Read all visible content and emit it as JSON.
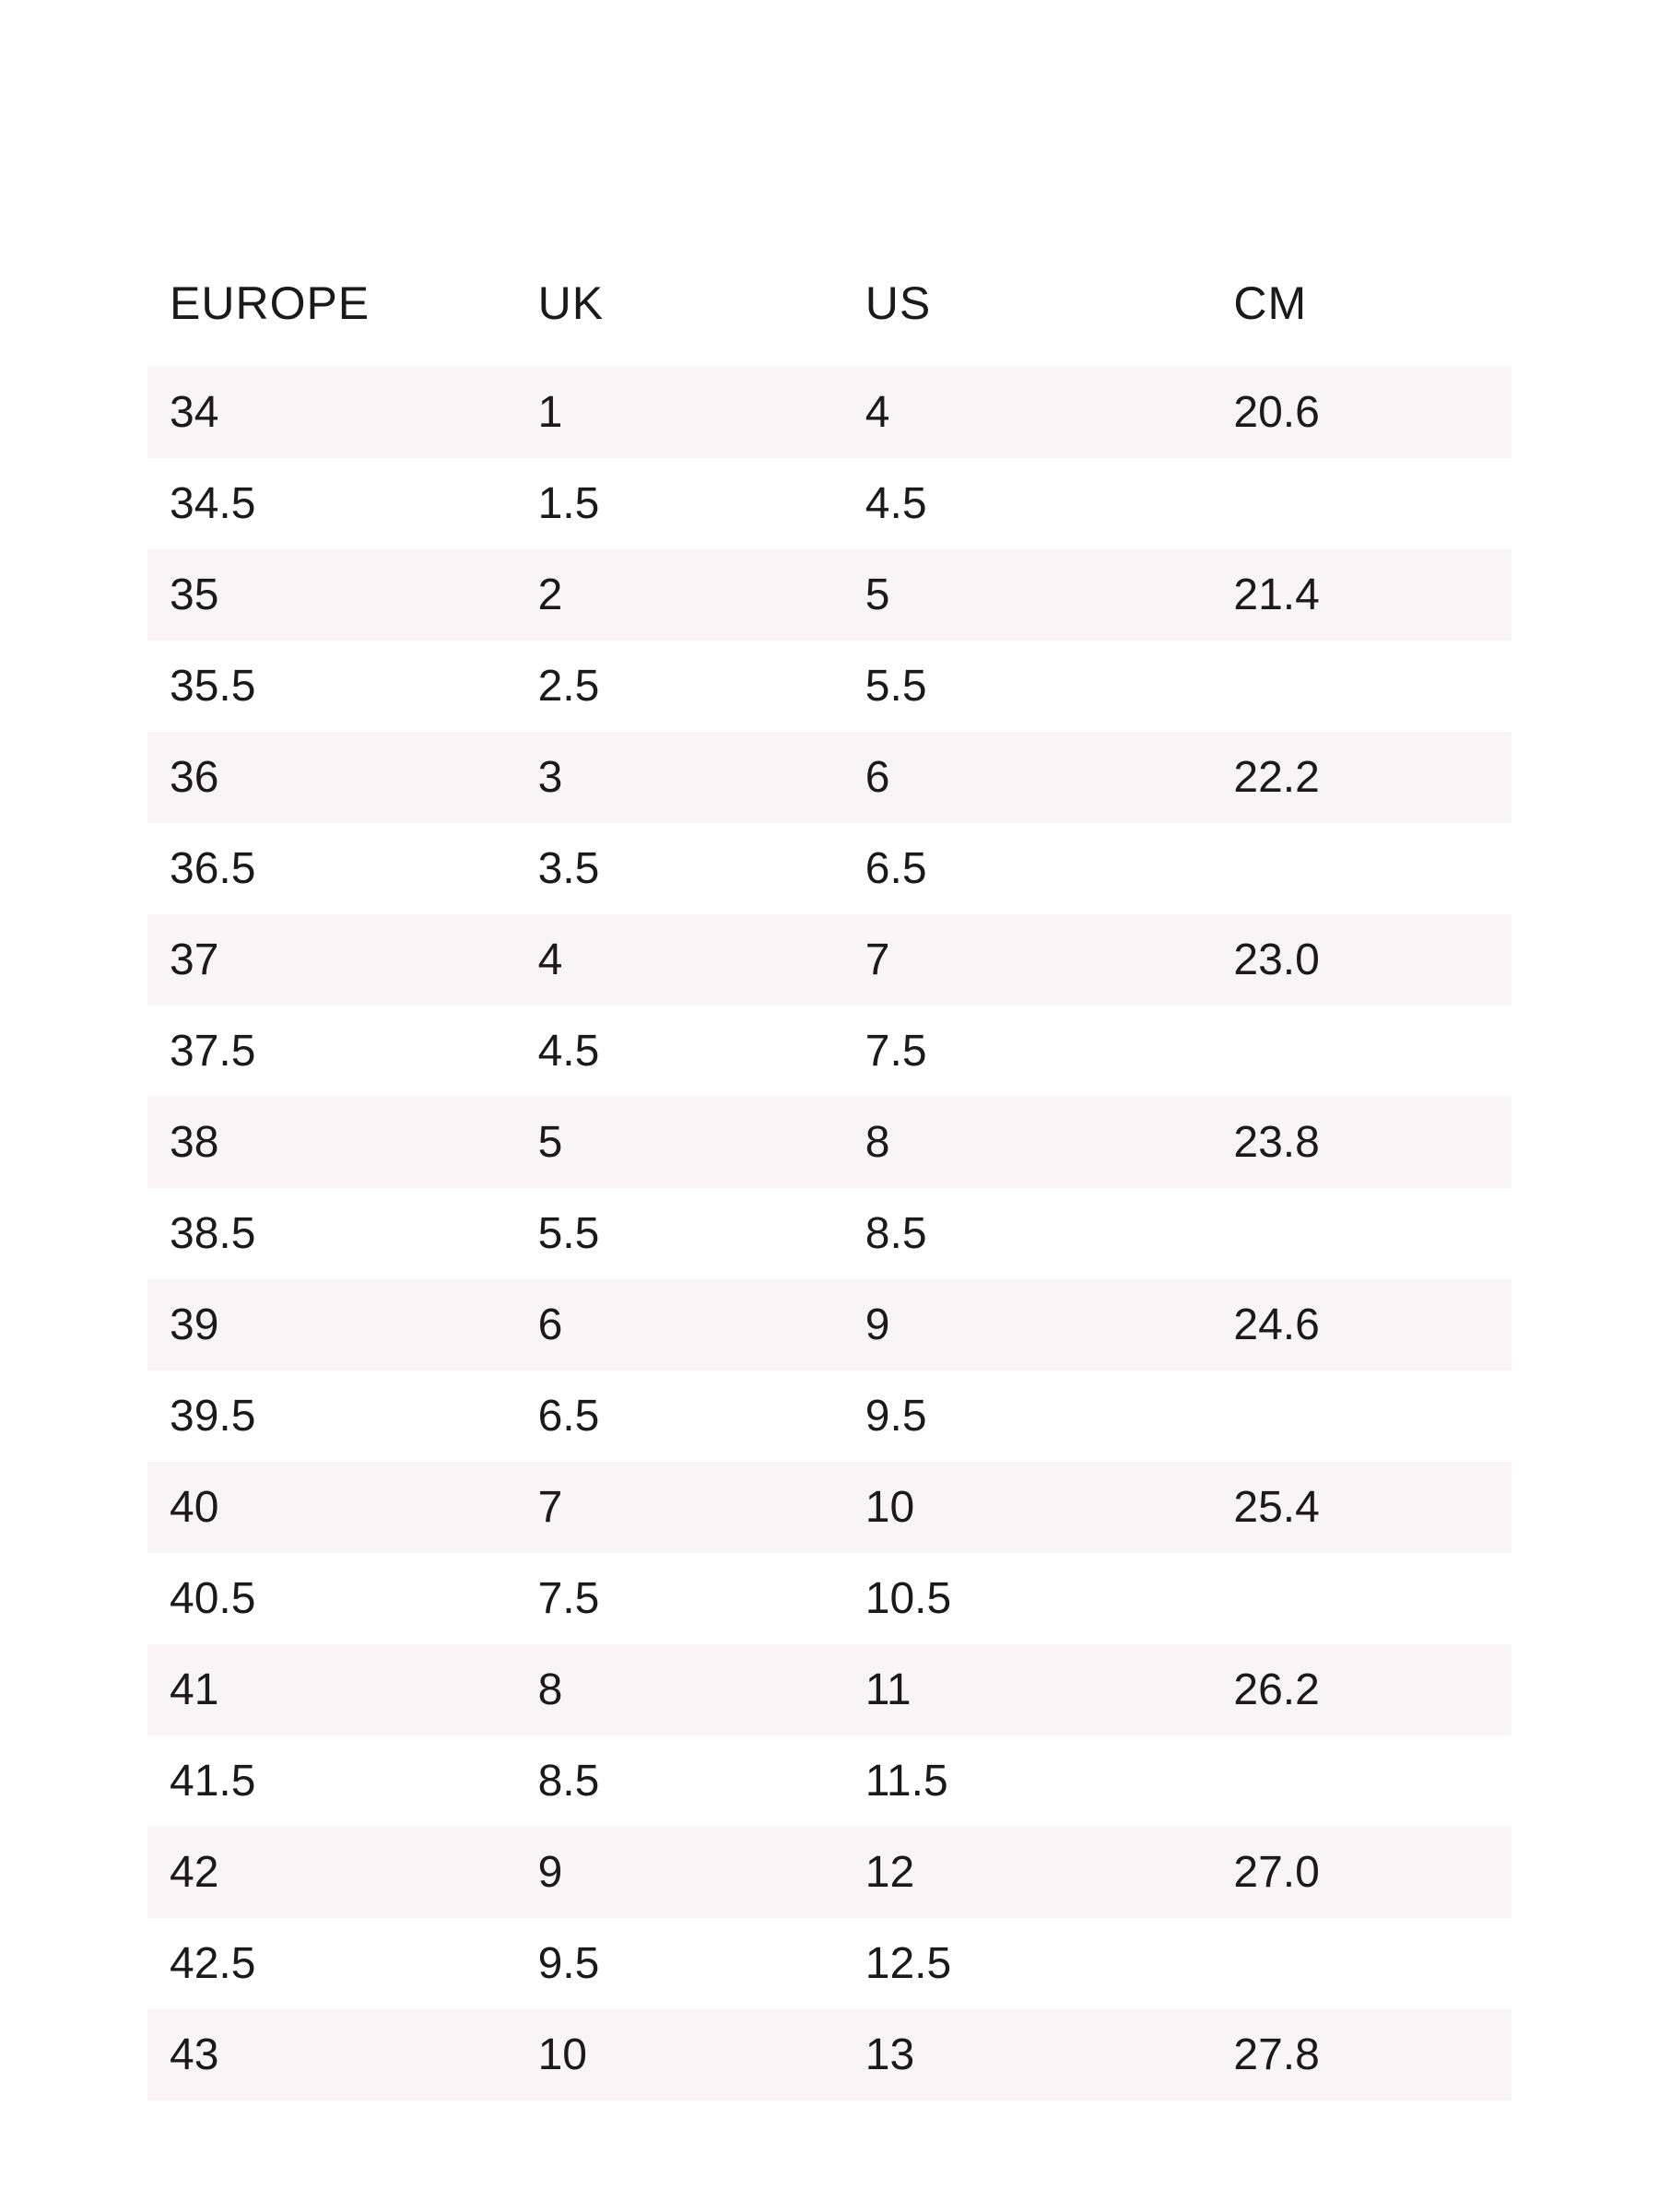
{
  "table": {
    "type": "table",
    "background_color": "#ffffff",
    "stripe_color": "#f9f4f5",
    "text_color": "#1a1a1a",
    "header_fontsize": 50,
    "cell_fontsize": 48,
    "columns": [
      {
        "label": "EUROPE",
        "width_pct": 27,
        "align": "left"
      },
      {
        "label": "UK",
        "width_pct": 24,
        "align": "left"
      },
      {
        "label": "US",
        "width_pct": 27,
        "align": "left"
      },
      {
        "label": "CM",
        "width_pct": 22,
        "align": "left"
      }
    ],
    "rows": [
      [
        "34",
        "1",
        "4",
        "20.6"
      ],
      [
        "34.5",
        "1.5",
        "4.5",
        ""
      ],
      [
        "35",
        "2",
        "5",
        "21.4"
      ],
      [
        "35.5",
        "2.5",
        "5.5",
        ""
      ],
      [
        "36",
        "3",
        "6",
        "22.2"
      ],
      [
        "36.5",
        "3.5",
        "6.5",
        ""
      ],
      [
        "37",
        "4",
        "7",
        "23.0"
      ],
      [
        "37.5",
        "4.5",
        "7.5",
        ""
      ],
      [
        "38",
        "5",
        "8",
        "23.8"
      ],
      [
        "38.5",
        "5.5",
        "8.5",
        ""
      ],
      [
        "39",
        "6",
        "9",
        "24.6"
      ],
      [
        "39.5",
        "6.5",
        "9.5",
        ""
      ],
      [
        "40",
        "7",
        "10",
        "25.4"
      ],
      [
        "40.5",
        "7.5",
        "10.5",
        ""
      ],
      [
        "41",
        "8",
        "11",
        "26.2"
      ],
      [
        "41.5",
        "8.5",
        "11.5",
        ""
      ],
      [
        "42",
        "9",
        "12",
        "27.0"
      ],
      [
        "42.5",
        "9.5",
        "12.5",
        ""
      ],
      [
        "43",
        "10",
        "13",
        "27.8"
      ]
    ]
  }
}
